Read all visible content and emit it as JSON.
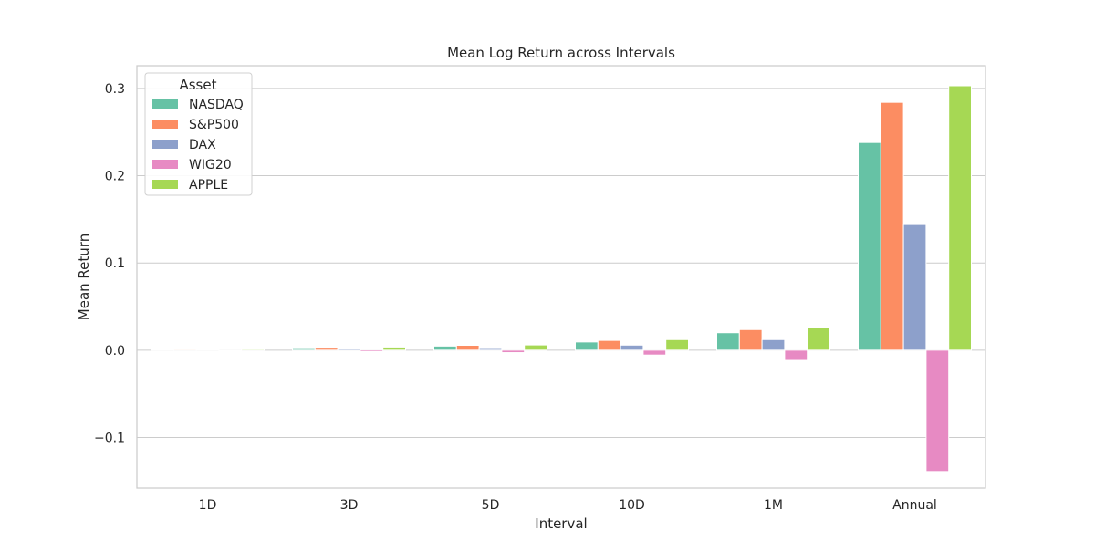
{
  "chart_data": {
    "type": "bar",
    "title": "Mean Log Return across Intervals",
    "xlabel": "Interval",
    "ylabel": "Mean Return",
    "categories": [
      "1D",
      "3D",
      "5D",
      "10D",
      "1M",
      "Annual"
    ],
    "ylim": [
      -0.158,
      0.326
    ],
    "yticks": [
      -0.1,
      0.0,
      0.1,
      0.2,
      0.3
    ],
    "ytick_labels": [
      "−0.1",
      "0.0",
      "0.1",
      "0.2",
      "0.3"
    ],
    "grid": true,
    "legend": {
      "title": "Asset",
      "placement": "top-left"
    },
    "series": [
      {
        "name": "NASDAQ",
        "color": "#66c2a5",
        "values": [
          0.0009,
          0.0028,
          0.0047,
          0.0094,
          0.02,
          0.238
        ]
      },
      {
        "name": "S&P500",
        "color": "#fc8d62",
        "values": [
          0.0011,
          0.0034,
          0.0056,
          0.0112,
          0.0236,
          0.284
        ]
      },
      {
        "name": "DAX",
        "color": "#8da0cb",
        "values": [
          0.0006,
          0.0017,
          0.0029,
          0.0058,
          0.0121,
          0.144
        ]
      },
      {
        "name": "WIG20",
        "color": "#e78ac3",
        "values": [
          -0.0005,
          -0.0017,
          -0.0028,
          -0.0056,
          -0.0117,
          -0.139
        ]
      },
      {
        "name": "APPLE",
        "color": "#a6d854",
        "values": [
          0.0012,
          0.0036,
          0.006,
          0.0121,
          0.0255,
          0.303
        ]
      }
    ]
  }
}
